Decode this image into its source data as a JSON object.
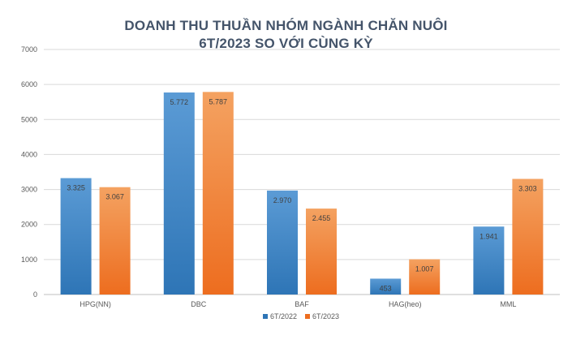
{
  "chart_data": {
    "type": "bar",
    "title": "DOANH THU THUẦN NHÓM NGÀNH CHĂN NUÔI",
    "subtitle": "6T/2023 SO VỚI CÙNG KỲ",
    "categories": [
      "HPG(NN)",
      "DBC",
      "BAF",
      "HAG(heo)",
      "MML"
    ],
    "series": [
      {
        "name": "6T/2022",
        "values": [
          3325,
          5772,
          2970,
          453,
          1941
        ],
        "labels": [
          "3.325",
          "5.772",
          "2.970",
          "453",
          "1.941"
        ],
        "color": "#5b9bd5",
        "color_dark": "#2e75b6"
      },
      {
        "name": "6T/2023",
        "values": [
          3067,
          5787,
          2455,
          1007,
          3303
        ],
        "labels": [
          "3.067",
          "5.787",
          "2.455",
          "1.007",
          "3.303"
        ],
        "color": "#f4a261",
        "color_dark": "#ed6d1f"
      }
    ],
    "ylim": [
      0,
      7000
    ],
    "yticks": [
      0,
      1000,
      2000,
      3000,
      4000,
      5000,
      6000,
      7000
    ],
    "grid": true,
    "legend_position": "bottom"
  }
}
